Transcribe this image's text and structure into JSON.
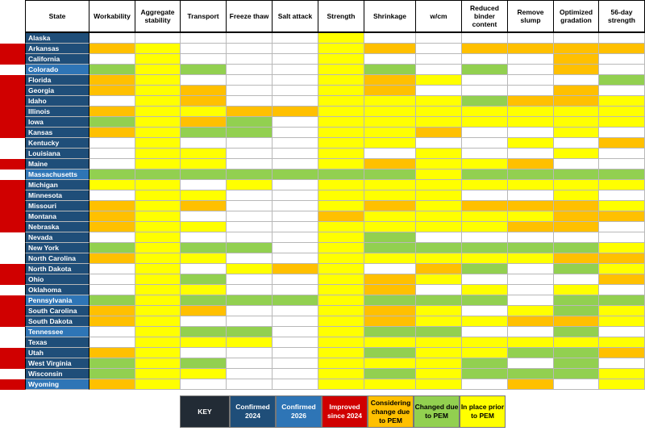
{
  "colors": {
    "white": "#ffffff",
    "yellow": "#ffff00",
    "orange": "#ffc000",
    "green": "#92d050",
    "red": "#d00000",
    "navy": "#1f4e79",
    "blue": "#2e75b6",
    "key_dark": "#222b35",
    "key_navy": "#1f4e79",
    "key_blue": "#2e75b6"
  },
  "headers": [
    "State",
    "Workability",
    "Aggregate stability",
    "Transport",
    "Freeze thaw",
    "Salt attack",
    "Strength",
    "Shrinkage",
    "w/cm",
    "Reduced binder content",
    "Remove slump",
    "Optimized gradation",
    "56-day strength"
  ],
  "rows": [
    {
      "state": "Alaska",
      "marker": "none",
      "bg": "navy",
      "cells": [
        "white",
        "white",
        "white",
        "white",
        "white",
        "yellow",
        "white",
        "white",
        "white",
        "white",
        "white",
        "white"
      ]
    },
    {
      "state": "Arkansas",
      "marker": "red",
      "bg": "navy",
      "cells": [
        "orange",
        "yellow",
        "white",
        "white",
        "white",
        "yellow",
        "orange",
        "white",
        "orange",
        "orange",
        "orange",
        "orange"
      ]
    },
    {
      "state": "California",
      "marker": "red",
      "bg": "navy",
      "cells": [
        "white",
        "yellow",
        "white",
        "white",
        "white",
        "yellow",
        "white",
        "white",
        "white",
        "white",
        "orange",
        "white"
      ]
    },
    {
      "state": "Colorado",
      "marker": "none",
      "bg": "blue",
      "cells": [
        "green",
        "yellow",
        "green",
        "white",
        "white",
        "yellow",
        "green",
        "white",
        "green",
        "white",
        "orange",
        "white"
      ]
    },
    {
      "state": "Florida",
      "marker": "red",
      "bg": "navy",
      "cells": [
        "orange",
        "yellow",
        "white",
        "white",
        "white",
        "yellow",
        "orange",
        "yellow",
        "white",
        "white",
        "white",
        "green"
      ]
    },
    {
      "state": "Georgia",
      "marker": "red",
      "bg": "navy",
      "cells": [
        "orange",
        "yellow",
        "orange",
        "white",
        "white",
        "yellow",
        "orange",
        "white",
        "white",
        "white",
        "orange",
        "white"
      ]
    },
    {
      "state": "Idaho",
      "marker": "red",
      "bg": "navy",
      "cells": [
        "white",
        "yellow",
        "orange",
        "white",
        "white",
        "yellow",
        "yellow",
        "yellow",
        "green",
        "orange",
        "orange",
        "yellow"
      ]
    },
    {
      "state": "Illinois",
      "marker": "red",
      "bg": "navy",
      "cells": [
        "orange",
        "yellow",
        "yellow",
        "orange",
        "orange",
        "yellow",
        "yellow",
        "yellow",
        "yellow",
        "yellow",
        "yellow",
        "yellow"
      ]
    },
    {
      "state": "Iowa",
      "marker": "red",
      "bg": "navy",
      "cells": [
        "green",
        "yellow",
        "orange",
        "green",
        "white",
        "yellow",
        "yellow",
        "yellow",
        "yellow",
        "yellow",
        "yellow",
        "yellow"
      ]
    },
    {
      "state": "Kansas",
      "marker": "red",
      "bg": "navy",
      "cells": [
        "orange",
        "yellow",
        "green",
        "green",
        "white",
        "yellow",
        "yellow",
        "orange",
        "white",
        "white",
        "yellow",
        "white"
      ]
    },
    {
      "state": "Kentucky",
      "marker": "none",
      "bg": "navy",
      "cells": [
        "white",
        "yellow",
        "white",
        "white",
        "white",
        "yellow",
        "yellow",
        "white",
        "white",
        "yellow",
        "white",
        "orange"
      ]
    },
    {
      "state": "Louisiana",
      "marker": "none",
      "bg": "navy",
      "cells": [
        "white",
        "yellow",
        "yellow",
        "white",
        "white",
        "yellow",
        "white",
        "yellow",
        "white",
        "white",
        "yellow",
        "white"
      ]
    },
    {
      "state": "Maine",
      "marker": "red",
      "bg": "navy",
      "cells": [
        "white",
        "yellow",
        "yellow",
        "white",
        "white",
        "yellow",
        "orange",
        "yellow",
        "yellow",
        "orange",
        "white",
        "white"
      ]
    },
    {
      "state": "Massachusetts",
      "marker": "none",
      "bg": "blue",
      "cells": [
        "green",
        "green",
        "green",
        "green",
        "green",
        "green",
        "green",
        "yellow",
        "green",
        "green",
        "green",
        "green"
      ]
    },
    {
      "state": "Michigan",
      "marker": "red",
      "bg": "navy",
      "cells": [
        "yellow",
        "yellow",
        "white",
        "yellow",
        "white",
        "yellow",
        "yellow",
        "yellow",
        "yellow",
        "yellow",
        "yellow",
        "yellow"
      ]
    },
    {
      "state": "Minnesota",
      "marker": "red",
      "bg": "navy",
      "cells": [
        "white",
        "yellow",
        "yellow",
        "white",
        "white",
        "yellow",
        "yellow",
        "yellow",
        "white",
        "white",
        "yellow",
        "white"
      ]
    },
    {
      "state": "Missouri",
      "marker": "red",
      "bg": "navy",
      "cells": [
        "orange",
        "yellow",
        "orange",
        "white",
        "white",
        "yellow",
        "orange",
        "yellow",
        "orange",
        "orange",
        "orange",
        "yellow"
      ]
    },
    {
      "state": "Montana",
      "marker": "red",
      "bg": "navy",
      "cells": [
        "orange",
        "yellow",
        "white",
        "white",
        "white",
        "orange",
        "yellow",
        "yellow",
        "yellow",
        "yellow",
        "orange",
        "orange"
      ]
    },
    {
      "state": "Nebraska",
      "marker": "red",
      "bg": "navy",
      "cells": [
        "orange",
        "yellow",
        "yellow",
        "white",
        "white",
        "yellow",
        "yellow",
        "yellow",
        "yellow",
        "orange",
        "orange",
        "white"
      ]
    },
    {
      "state": "Nevada",
      "marker": "none",
      "bg": "navy",
      "cells": [
        "white",
        "yellow",
        "white",
        "white",
        "white",
        "yellow",
        "green",
        "white",
        "white",
        "white",
        "white",
        "white"
      ]
    },
    {
      "state": "New York",
      "marker": "none",
      "bg": "navy",
      "cells": [
        "green",
        "yellow",
        "green",
        "green",
        "white",
        "yellow",
        "green",
        "green",
        "green",
        "green",
        "green",
        "yellow"
      ]
    },
    {
      "state": "North Carolina",
      "marker": "none",
      "bg": "navy",
      "cells": [
        "orange",
        "yellow",
        "yellow",
        "white",
        "white",
        "yellow",
        "yellow",
        "yellow",
        "yellow",
        "yellow",
        "orange",
        "orange"
      ]
    },
    {
      "state": "North Dakota",
      "marker": "red",
      "bg": "navy",
      "cells": [
        "white",
        "yellow",
        "white",
        "yellow",
        "orange",
        "yellow",
        "white",
        "orange",
        "green",
        "white",
        "green",
        "yellow"
      ]
    },
    {
      "state": "Ohio",
      "marker": "red",
      "bg": "navy",
      "cells": [
        "white",
        "yellow",
        "green",
        "white",
        "white",
        "yellow",
        "orange",
        "yellow",
        "white",
        "white",
        "white",
        "orange"
      ]
    },
    {
      "state": "Oklahoma",
      "marker": "none",
      "bg": "navy",
      "cells": [
        "white",
        "yellow",
        "yellow",
        "white",
        "white",
        "yellow",
        "orange",
        "white",
        "yellow",
        "white",
        "yellow",
        "white"
      ]
    },
    {
      "state": "Pennsylvania",
      "marker": "red",
      "bg": "blue",
      "cells": [
        "green",
        "yellow",
        "green",
        "green",
        "green",
        "yellow",
        "green",
        "green",
        "green",
        "white",
        "green",
        "green"
      ]
    },
    {
      "state": "South Carolina",
      "marker": "red",
      "bg": "navy",
      "cells": [
        "orange",
        "yellow",
        "orange",
        "white",
        "white",
        "yellow",
        "orange",
        "yellow",
        "white",
        "yellow",
        "green",
        "yellow"
      ]
    },
    {
      "state": "South Dakota",
      "marker": "red",
      "bg": "navy",
      "cells": [
        "orange",
        "yellow",
        "white",
        "white",
        "white",
        "yellow",
        "orange",
        "yellow",
        "yellow",
        "orange",
        "orange",
        "yellow"
      ]
    },
    {
      "state": "Tennessee",
      "marker": "none",
      "bg": "blue",
      "cells": [
        "white",
        "yellow",
        "green",
        "green",
        "white",
        "yellow",
        "green",
        "green",
        "white",
        "white",
        "green",
        "white"
      ]
    },
    {
      "state": "Texas",
      "marker": "none",
      "bg": "navy",
      "cells": [
        "white",
        "yellow",
        "yellow",
        "yellow",
        "white",
        "yellow",
        "yellow",
        "yellow",
        "yellow",
        "yellow",
        "yellow",
        "yellow"
      ]
    },
    {
      "state": "Utah",
      "marker": "red",
      "bg": "navy",
      "cells": [
        "orange",
        "yellow",
        "white",
        "white",
        "white",
        "yellow",
        "green",
        "yellow",
        "yellow",
        "green",
        "green",
        "orange"
      ]
    },
    {
      "state": "West Virginia",
      "marker": "red",
      "bg": "navy",
      "cells": [
        "green",
        "yellow",
        "green",
        "white",
        "white",
        "yellow",
        "yellow",
        "yellow",
        "green",
        "white",
        "green",
        "white"
      ]
    },
    {
      "state": "Wisconsin",
      "marker": "none",
      "bg": "navy",
      "cells": [
        "green",
        "yellow",
        "yellow",
        "white",
        "white",
        "yellow",
        "green",
        "yellow",
        "green",
        "green",
        "green",
        "yellow"
      ]
    },
    {
      "state": "Wyoming",
      "marker": "red",
      "bg": "blue",
      "cells": [
        "orange",
        "yellow",
        "white",
        "white",
        "white",
        "yellow",
        "yellow",
        "yellow",
        "white",
        "orange",
        "white",
        "yellow"
      ]
    }
  ],
  "key": [
    {
      "label": "KEY",
      "color": "key_dark",
      "text_color": "#ffffff"
    },
    {
      "label": "Confirmed 2024",
      "color": "key_navy",
      "text_color": "#ffffff"
    },
    {
      "label": "Confirmed 2026",
      "color": "key_blue",
      "text_color": "#ffffff"
    },
    {
      "label": "Improved since 2024",
      "color": "red",
      "text_color": "#ffffff"
    },
    {
      "label": "Considering change due to PEM",
      "color": "orange",
      "text_color": "#000000"
    },
    {
      "label": "Changed due to PEM",
      "color": "green",
      "text_color": "#000000"
    },
    {
      "label": "In place prior to PEM",
      "color": "yellow",
      "text_color": "#000000"
    }
  ]
}
